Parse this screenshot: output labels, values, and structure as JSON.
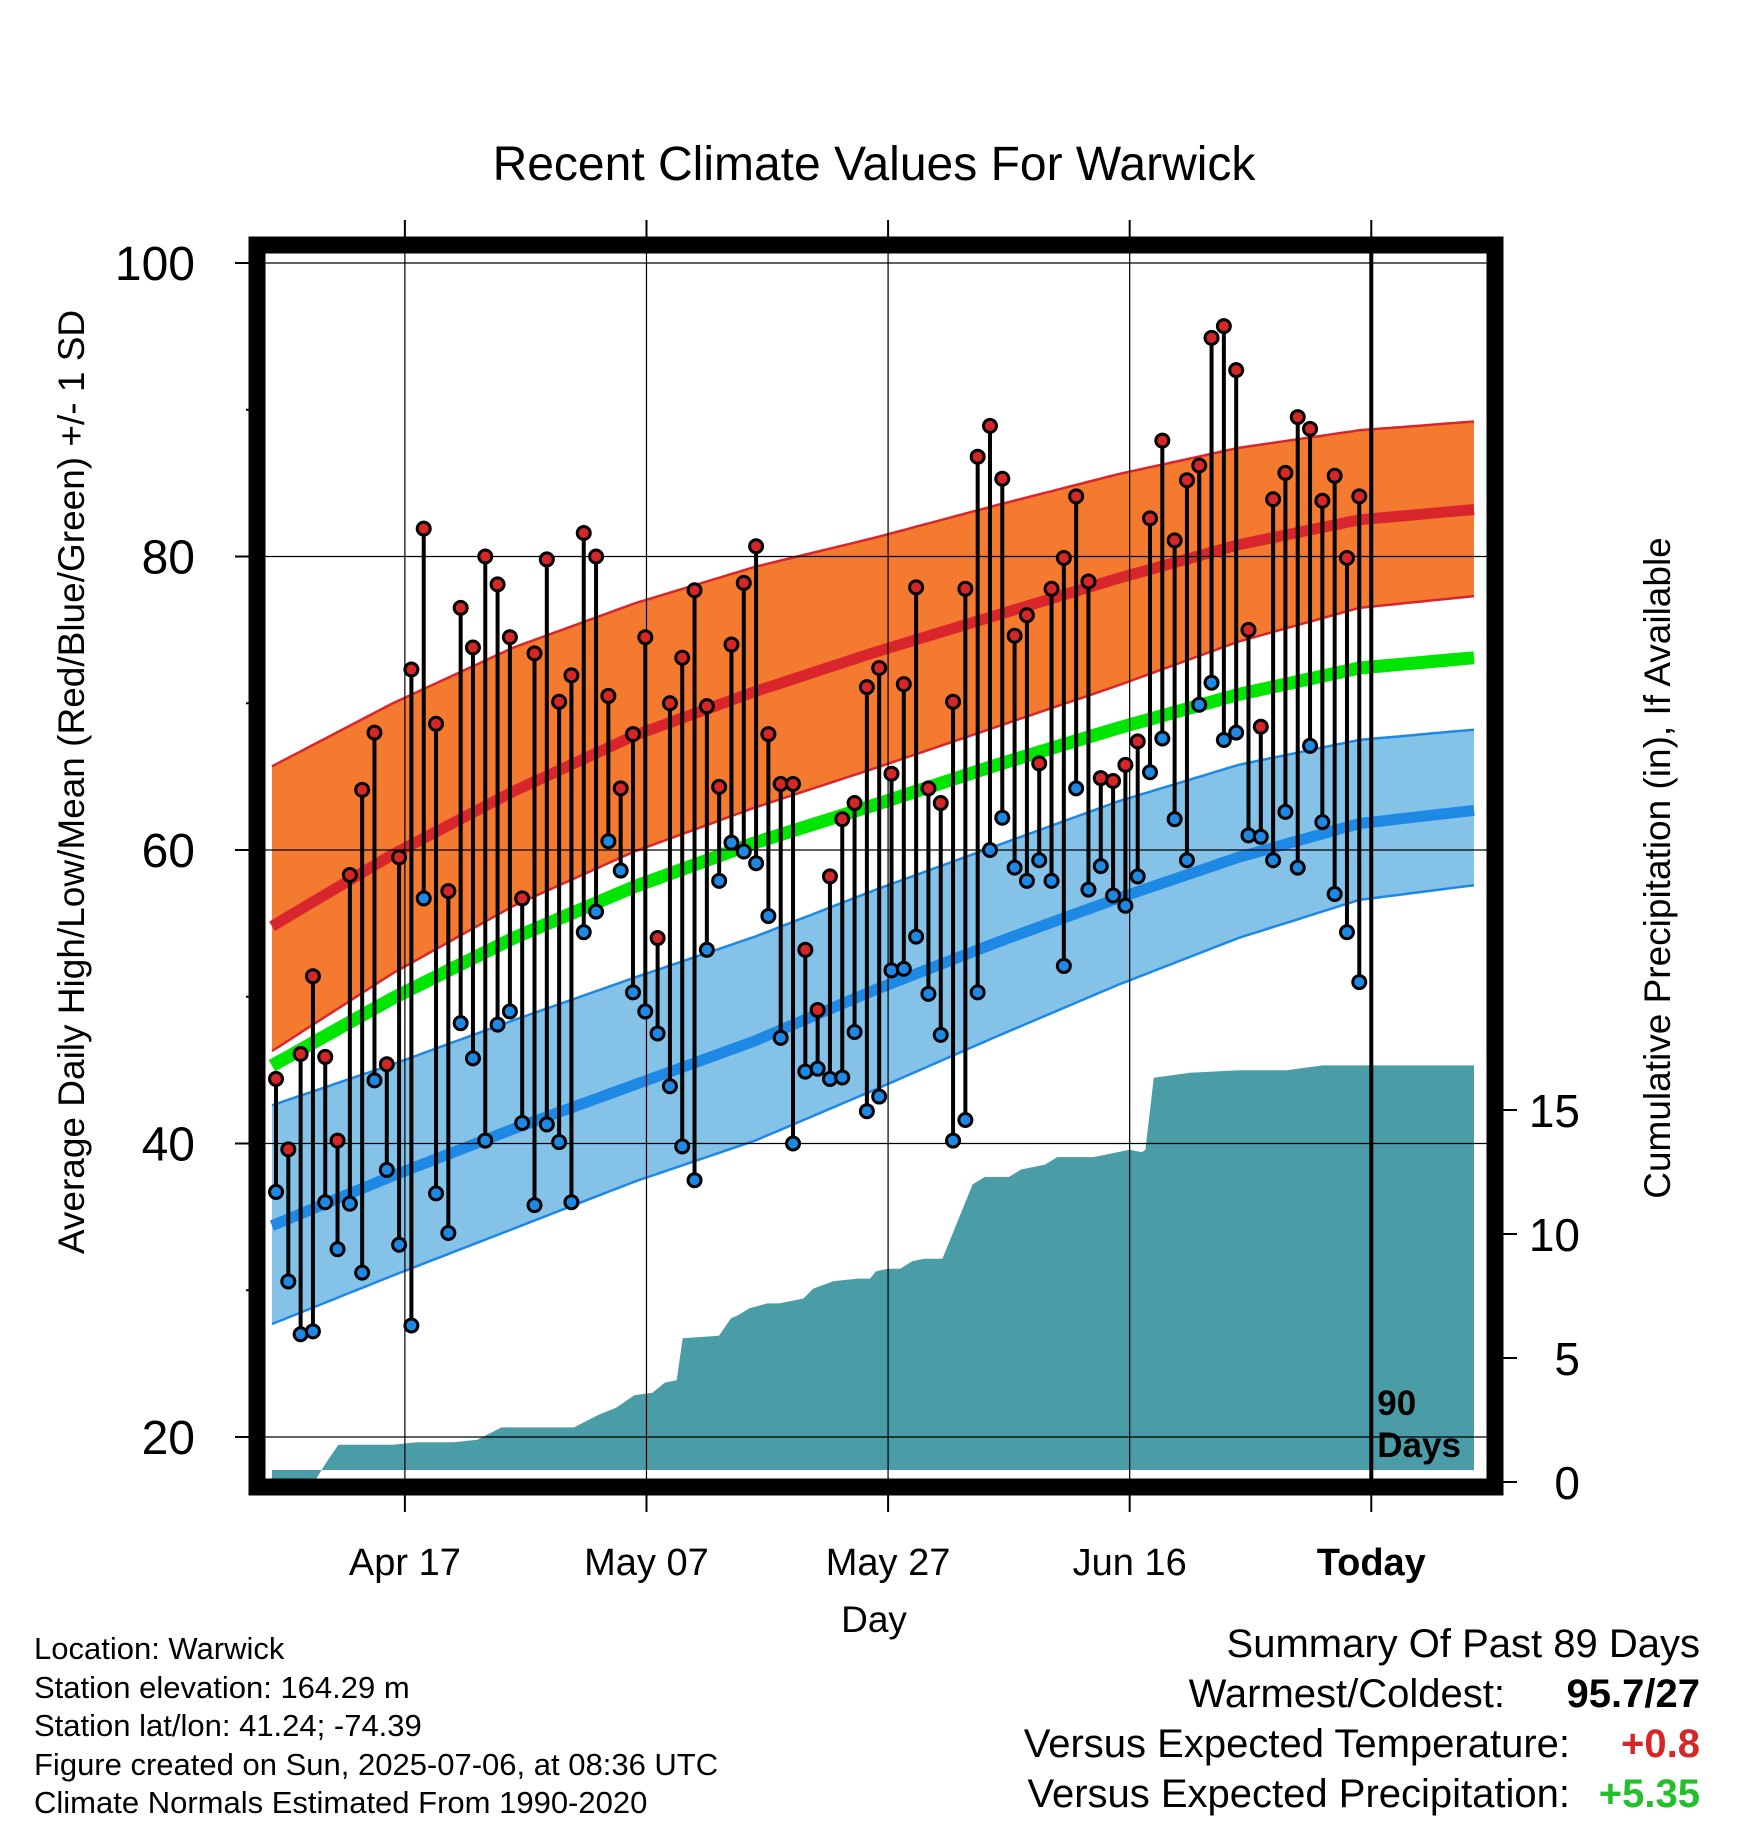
{
  "chart_data": {
    "type": "line",
    "title": "Recent Climate Values For Warwick",
    "xlabel": "Day",
    "ylabel": "Average Daily High/Low/Mean (Red/Blue/Green) +/- 1 SD",
    "y2label": "Cumulative Precipitation (in), If Available",
    "ylim": [
      17.5,
      100
    ],
    "y_ticks": [
      20,
      40,
      60,
      80,
      100
    ],
    "y2lim": [
      0,
      21
    ],
    "y2_ticks": [
      0,
      5,
      10,
      15
    ],
    "x_ticks": [
      "Apr 17",
      "May 07",
      "May 27",
      "Jun 16",
      "Today"
    ],
    "x_tick_days": [
      11,
      31,
      51,
      71,
      91
    ],
    "x_range_days": [
      0,
      100
    ],
    "today_day": 91,
    "today_label": "90\nDays",
    "grid": true,
    "colors": {
      "high": "#e41a1c",
      "low": "#1e88e5",
      "mean": "#00e600",
      "high_band": "#f47a30",
      "low_band": "#85c2e8",
      "precip": "#4a9ca6"
    },
    "normals": {
      "days": [
        0,
        10,
        20,
        30,
        40,
        50,
        60,
        70,
        80,
        90,
        99.5
      ],
      "high": [
        54.8,
        59.7,
        64.0,
        67.8,
        70.8,
        73.5,
        76.0,
        78.5,
        80.8,
        82.5,
        83.2
      ],
      "high_upper": [
        65.7,
        70.0,
        73.8,
        76.8,
        79.3,
        81.3,
        83.5,
        85.6,
        87.4,
        88.6,
        89.2
      ],
      "high_lower": [
        46.3,
        51.6,
        56.2,
        59.9,
        62.9,
        65.6,
        68.4,
        71.2,
        74.2,
        76.5,
        77.3
      ],
      "mean": [
        45.3,
        49.9,
        54.0,
        57.5,
        60.5,
        63.1,
        65.8,
        68.3,
        70.6,
        72.4,
        73.1
      ],
      "low": [
        34.4,
        37.8,
        41.0,
        44.0,
        47.0,
        50.5,
        53.7,
        56.7,
        59.5,
        61.8,
        62.7
      ],
      "low_upper": [
        42.6,
        45.4,
        48.4,
        51.3,
        54.1,
        57.3,
        60.3,
        63.3,
        65.8,
        67.5,
        68.2
      ],
      "low_lower": [
        27.7,
        31.0,
        34.2,
        37.4,
        40.2,
        43.7,
        47.3,
        50.8,
        54.0,
        56.6,
        57.6
      ]
    },
    "series": [
      {
        "name": "High",
        "values": [
          44.4,
          39.6,
          46.1,
          51.4,
          45.9,
          40.2,
          58.3,
          64.1,
          68.0,
          45.4,
          59.5,
          72.3,
          81.9,
          68.6,
          57.2,
          76.5,
          73.8,
          80.0,
          78.1,
          74.5,
          56.7,
          73.4,
          79.8,
          70.1,
          71.9,
          81.6,
          80.0,
          70.5,
          64.2,
          67.9,
          74.5,
          54.0,
          70.0,
          73.1,
          77.7,
          69.8,
          64.3,
          74.0,
          78.2,
          80.7,
          67.9,
          64.5,
          64.5,
          53.2,
          49.1,
          58.2,
          62.1,
          63.2,
          71.1,
          72.4,
          65.2,
          71.3,
          77.9,
          64.2,
          63.2,
          70.1,
          77.8,
          86.8,
          88.9,
          85.3,
          74.6,
          76.0,
          65.9,
          77.8,
          79.9,
          84.1,
          78.3,
          64.9,
          64.7,
          65.8,
          67.4,
          82.6,
          87.9,
          81.1,
          85.2,
          86.2,
          94.9,
          95.7,
          92.7,
          75.0,
          68.4,
          83.9,
          85.7,
          89.5,
          88.7,
          83.8,
          85.5,
          79.9,
          84.1
        ]
      },
      {
        "name": "Low",
        "values": [
          36.7,
          30.6,
          27.0,
          27.2,
          36.0,
          32.8,
          35.9,
          31.2,
          44.3,
          38.2,
          33.1,
          27.6,
          56.7,
          36.6,
          33.9,
          48.2,
          45.8,
          40.2,
          48.1,
          49.0,
          41.4,
          35.8,
          41.3,
          40.1,
          36.0,
          54.4,
          55.8,
          60.6,
          58.6,
          50.3,
          49.0,
          47.5,
          43.9,
          39.8,
          37.5,
          53.2,
          57.9,
          60.5,
          59.9,
          59.1,
          55.5,
          47.2,
          40.0,
          44.9,
          45.1,
          44.4,
          44.5,
          47.6,
          42.2,
          43.2,
          51.8,
          51.9,
          54.1,
          50.2,
          47.4,
          40.2,
          41.6,
          50.3,
          60.0,
          62.2,
          58.8,
          57.9,
          59.3,
          57.9,
          52.1,
          64.2,
          57.3,
          58.9,
          56.9,
          56.2,
          58.2,
          65.3,
          67.6,
          62.1,
          59.3,
          69.9,
          71.4,
          67.5,
          68.0,
          61.0,
          60.9,
          59.3,
          62.6,
          58.8,
          67.1,
          61.9,
          57.0,
          54.4,
          51.0
        ]
      }
    ],
    "precip_cumulative": {
      "days": [
        0,
        3.5,
        4.5,
        5.5,
        10,
        12,
        15,
        17,
        19,
        20,
        25,
        27,
        28.5,
        30,
        31.5,
        32.5,
        33.5,
        34,
        37,
        38,
        38.5,
        39.5,
        41,
        42,
        44,
        44.8,
        46.5,
        48.5,
        49.5,
        50,
        51,
        52,
        53,
        54,
        55.5,
        58,
        59,
        60,
        61,
        62,
        64,
        65,
        68,
        71,
        72,
        72.3,
        73,
        76,
        80,
        84,
        85.5,
        87,
        89,
        92,
        99.5
      ],
      "values": [
        0,
        0,
        0.8,
        1.5,
        1.5,
        1.6,
        1.6,
        1.7,
        2.2,
        2.2,
        2.2,
        2.7,
        3.0,
        3.5,
        3.6,
        4.0,
        4.1,
        5.8,
        5.9,
        6.6,
        6.7,
        7.0,
        7.2,
        7.2,
        7.4,
        7.8,
        8.1,
        8.2,
        8.2,
        8.5,
        8.6,
        8.6,
        8.9,
        9.0,
        9.0,
        12.0,
        12.3,
        12.3,
        12.3,
        12.6,
        12.8,
        13.1,
        13.1,
        13.4,
        13.3,
        13.4,
        16.3,
        16.5,
        16.6,
        16.6,
        16.7,
        16.8,
        16.8,
        16.8,
        16.8
      ]
    }
  },
  "footer": {
    "location": "Location: Warwick",
    "elevation": "Station elevation: 164.29 m",
    "latlon": "Station lat/lon: 41.24; -74.39",
    "created": "Figure created on Sun, 2025-07-06, at 08:36 UTC",
    "normals": "Climate Normals Estimated From 1990-2020"
  },
  "summary": {
    "title": "Summary Of Past 89 Days",
    "warmest_coldest_label": "Warmest/Coldest:",
    "warmest_coldest_value": "95.7/27",
    "temp_label": "Versus Expected Temperature:",
    "temp_value": "+0.8",
    "temp_color": "#d62728",
    "precip_label": "Versus Expected Precipitation:",
    "precip_value": "+5.35",
    "precip_color": "#22c02a"
  }
}
